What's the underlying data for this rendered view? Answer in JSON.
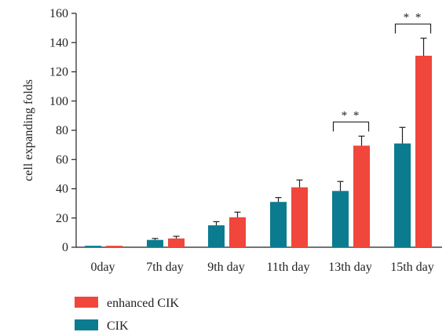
{
  "chart_data": {
    "type": "bar",
    "ylabel": "cell expanding folds",
    "ylim": [
      0,
      160
    ],
    "yticks": [
      0,
      20,
      40,
      60,
      80,
      100,
      120,
      140,
      160
    ],
    "categories": [
      "0day",
      "7th day",
      "9th day",
      "11th day",
      "13th day",
      "15th day"
    ],
    "series": [
      {
        "name": "CIK",
        "color": "#0b7c8f",
        "values": [
          1,
          5,
          15,
          31,
          38.5,
          71
        ],
        "errors": [
          0,
          1,
          2.5,
          3,
          6.5,
          11
        ]
      },
      {
        "name": "enhanced CIK",
        "color": "#f0463b",
        "values": [
          1,
          6,
          20.5,
          41,
          69.5,
          131
        ],
        "errors": [
          0,
          1.5,
          3.5,
          5,
          6.5,
          12
        ]
      }
    ],
    "legend_order": [
      "enhanced CIK",
      "CIK"
    ],
    "legend_position": "bottom-left",
    "grid": false,
    "significance": [
      {
        "category": "13th day",
        "label": "* *"
      },
      {
        "category": "15th day",
        "label": "* *"
      }
    ]
  }
}
